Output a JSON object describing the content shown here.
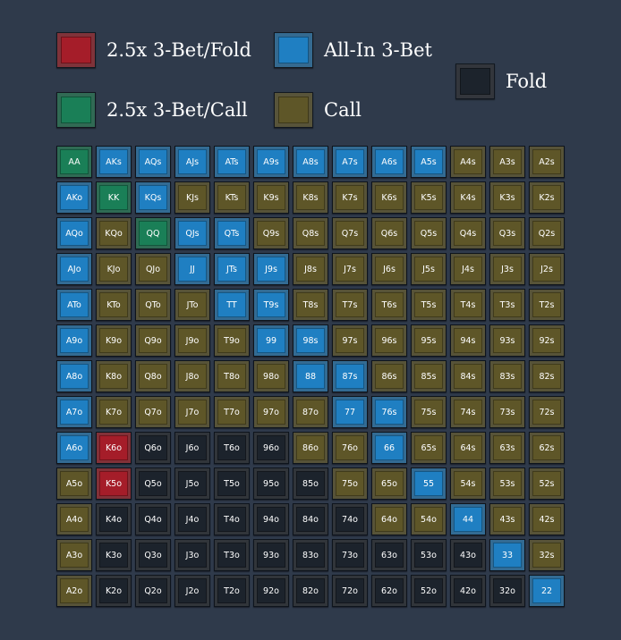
{
  "legend": {
    "fold_3bet": {
      "label": "2.5x 3-Bet/Fold",
      "color": "#a51d29"
    },
    "allin_3bet": {
      "label": "All-In 3-Bet",
      "color": "#1f7fc2"
    },
    "fold": {
      "label": "Fold",
      "color": "#1c232c"
    },
    "call_3bet": {
      "label": "2.5x 3-Bet/Call",
      "color": "#1a7f57"
    },
    "call": {
      "label": "Call",
      "color": "#5e5628"
    }
  },
  "grid": {
    "ranks": [
      "A",
      "K",
      "Q",
      "J",
      "T",
      "9",
      "8",
      "7",
      "6",
      "5",
      "4",
      "3",
      "2"
    ],
    "rows": [
      {
        "hands": [
          "AA",
          "AKs",
          "AQs",
          "AJs",
          "ATs",
          "A9s",
          "A8s",
          "A7s",
          "A6s",
          "A5s",
          "A4s",
          "A3s",
          "A2s"
        ],
        "actions": [
          "call_3bet",
          "allin_3bet",
          "allin_3bet",
          "allin_3bet",
          "allin_3bet",
          "allin_3bet",
          "allin_3bet",
          "allin_3bet",
          "allin_3bet",
          "allin_3bet",
          "call",
          "call",
          "call"
        ]
      },
      {
        "hands": [
          "AKo",
          "KK",
          "KQs",
          "KJs",
          "KTs",
          "K9s",
          "K8s",
          "K7s",
          "K6s",
          "K5s",
          "K4s",
          "K3s",
          "K2s"
        ],
        "actions": [
          "allin_3bet",
          "call_3bet",
          "allin_3bet",
          "call",
          "call",
          "call",
          "call",
          "call",
          "call",
          "call",
          "call",
          "call",
          "call"
        ]
      },
      {
        "hands": [
          "AQo",
          "KQo",
          "QQ",
          "QJs",
          "QTs",
          "Q9s",
          "Q8s",
          "Q7s",
          "Q6s",
          "Q5s",
          "Q4s",
          "Q3s",
          "Q2s"
        ],
        "actions": [
          "allin_3bet",
          "call",
          "call_3bet",
          "allin_3bet",
          "allin_3bet",
          "call",
          "call",
          "call",
          "call",
          "call",
          "call",
          "call",
          "call"
        ]
      },
      {
        "hands": [
          "AJo",
          "KJo",
          "QJo",
          "JJ",
          "JTs",
          "J9s",
          "J8s",
          "J7s",
          "J6s",
          "J5s",
          "J4s",
          "J3s",
          "J2s"
        ],
        "actions": [
          "allin_3bet",
          "call",
          "call",
          "allin_3bet",
          "allin_3bet",
          "allin_3bet",
          "call",
          "call",
          "call",
          "call",
          "call",
          "call",
          "call"
        ]
      },
      {
        "hands": [
          "ATo",
          "KTo",
          "QTo",
          "JTo",
          "TT",
          "T9s",
          "T8s",
          "T7s",
          "T6s",
          "T5s",
          "T4s",
          "T3s",
          "T2s"
        ],
        "actions": [
          "allin_3bet",
          "call",
          "call",
          "call",
          "allin_3bet",
          "allin_3bet",
          "call",
          "call",
          "call",
          "call",
          "call",
          "call",
          "call"
        ]
      },
      {
        "hands": [
          "A9o",
          "K9o",
          "Q9o",
          "J9o",
          "T9o",
          "99",
          "98s",
          "97s",
          "96s",
          "95s",
          "94s",
          "93s",
          "92s"
        ],
        "actions": [
          "allin_3bet",
          "call",
          "call",
          "call",
          "call",
          "allin_3bet",
          "allin_3bet",
          "call",
          "call",
          "call",
          "call",
          "call",
          "call"
        ]
      },
      {
        "hands": [
          "A8o",
          "K8o",
          "Q8o",
          "J8o",
          "T8o",
          "98o",
          "88",
          "87s",
          "86s",
          "85s",
          "84s",
          "83s",
          "82s"
        ],
        "actions": [
          "allin_3bet",
          "call",
          "call",
          "call",
          "call",
          "call",
          "allin_3bet",
          "allin_3bet",
          "call",
          "call",
          "call",
          "call",
          "call"
        ]
      },
      {
        "hands": [
          "A7o",
          "K7o",
          "Q7o",
          "J7o",
          "T7o",
          "97o",
          "87o",
          "77",
          "76s",
          "75s",
          "74s",
          "73s",
          "72s"
        ],
        "actions": [
          "allin_3bet",
          "call",
          "call",
          "call",
          "call",
          "call",
          "call",
          "allin_3bet",
          "allin_3bet",
          "call",
          "call",
          "call",
          "call"
        ]
      },
      {
        "hands": [
          "A6o",
          "K6o",
          "Q6o",
          "J6o",
          "T6o",
          "96o",
          "86o",
          "76o",
          "66",
          "65s",
          "64s",
          "63s",
          "62s"
        ],
        "actions": [
          "allin_3bet",
          "fold_3bet",
          "fold",
          "fold",
          "fold",
          "fold",
          "call",
          "call",
          "allin_3bet",
          "call",
          "call",
          "call",
          "call"
        ]
      },
      {
        "hands": [
          "A5o",
          "K5o",
          "Q5o",
          "J5o",
          "T5o",
          "95o",
          "85o",
          "75o",
          "65o",
          "55",
          "54s",
          "53s",
          "52s"
        ],
        "actions": [
          "call",
          "fold_3bet",
          "fold",
          "fold",
          "fold",
          "fold",
          "fold",
          "call",
          "call",
          "allin_3bet",
          "call",
          "call",
          "call"
        ]
      },
      {
        "hands": [
          "A4o",
          "K4o",
          "Q4o",
          "J4o",
          "T4o",
          "94o",
          "84o",
          "74o",
          "64o",
          "54o",
          "44",
          "43s",
          "42s"
        ],
        "actions": [
          "call",
          "fold",
          "fold",
          "fold",
          "fold",
          "fold",
          "fold",
          "fold",
          "call",
          "call",
          "allin_3bet",
          "call",
          "call"
        ]
      },
      {
        "hands": [
          "A3o",
          "K3o",
          "Q3o",
          "J3o",
          "T3o",
          "93o",
          "83o",
          "73o",
          "63o",
          "53o",
          "43o",
          "33",
          "32s"
        ],
        "actions": [
          "call",
          "fold",
          "fold",
          "fold",
          "fold",
          "fold",
          "fold",
          "fold",
          "fold",
          "fold",
          "fold",
          "allin_3bet",
          "call"
        ]
      },
      {
        "hands": [
          "A2o",
          "K2o",
          "Q2o",
          "J2o",
          "T2o",
          "92o",
          "82o",
          "72o",
          "62o",
          "52o",
          "42o",
          "32o",
          "22"
        ],
        "actions": [
          "call",
          "fold",
          "fold",
          "fold",
          "fold",
          "fold",
          "fold",
          "fold",
          "fold",
          "fold",
          "fold",
          "fold",
          "allin_3bet"
        ]
      }
    ]
  }
}
